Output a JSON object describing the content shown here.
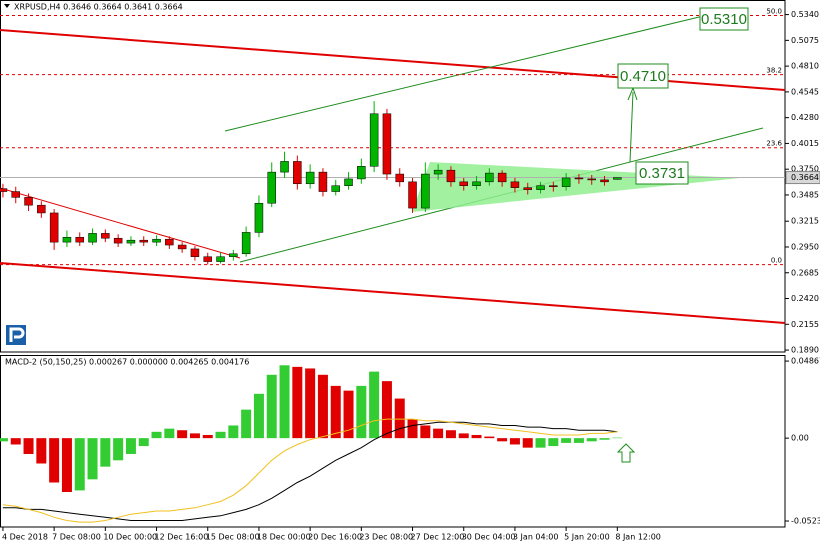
{
  "chart_data": [
    {
      "type": "candlestick",
      "title": "XRPUSD,H4  0.3646 0.3664 0.3641 0.3664",
      "open": [
        0.355,
        0.352,
        0.346,
        0.338,
        0.33,
        0.3,
        0.305,
        0.3,
        0.309,
        0.304,
        0.299,
        0.302,
        0.3,
        0.303,
        0.297,
        0.293,
        0.285,
        0.28,
        0.285,
        0.288,
        0.31,
        0.34,
        0.372,
        0.383,
        0.36,
        0.372,
        0.352,
        0.358,
        0.365,
        0.378,
        0.432,
        0.37,
        0.362,
        0.335,
        0.37,
        0.374,
        0.362,
        0.358,
        0.362,
        0.371,
        0.362,
        0.356,
        0.354,
        0.358,
        0.357,
        0.366,
        0.365,
        0.364,
        0.3646
      ],
      "high": [
        0.36,
        0.357,
        0.35,
        0.342,
        0.334,
        0.312,
        0.31,
        0.314,
        0.313,
        0.308,
        0.306,
        0.306,
        0.307,
        0.306,
        0.3,
        0.296,
        0.289,
        0.289,
        0.292,
        0.316,
        0.348,
        0.382,
        0.393,
        0.389,
        0.38,
        0.376,
        0.364,
        0.372,
        0.386,
        0.445,
        0.437,
        0.376,
        0.366,
        0.382,
        0.38,
        0.378,
        0.366,
        0.368,
        0.376,
        0.374,
        0.366,
        0.361,
        0.362,
        0.362,
        0.371,
        0.37,
        0.369,
        0.368,
        0.3664
      ],
      "low": [
        0.346,
        0.34,
        0.332,
        0.325,
        0.292,
        0.295,
        0.296,
        0.297,
        0.3,
        0.295,
        0.296,
        0.296,
        0.296,
        0.293,
        0.289,
        0.281,
        0.277,
        0.278,
        0.281,
        0.285,
        0.305,
        0.336,
        0.366,
        0.354,
        0.355,
        0.347,
        0.348,
        0.354,
        0.36,
        0.372,
        0.364,
        0.357,
        0.33,
        0.331,
        0.364,
        0.357,
        0.353,
        0.354,
        0.358,
        0.357,
        0.351,
        0.349,
        0.35,
        0.352,
        0.353,
        0.36,
        0.359,
        0.358,
        0.3641
      ],
      "close": [
        0.352,
        0.346,
        0.338,
        0.33,
        0.3,
        0.305,
        0.3,
        0.309,
        0.304,
        0.299,
        0.302,
        0.3,
        0.303,
        0.297,
        0.293,
        0.285,
        0.28,
        0.285,
        0.288,
        0.31,
        0.34,
        0.372,
        0.383,
        0.36,
        0.372,
        0.352,
        0.358,
        0.365,
        0.378,
        0.432,
        0.37,
        0.362,
        0.335,
        0.37,
        0.374,
        0.362,
        0.358,
        0.362,
        0.371,
        0.362,
        0.356,
        0.354,
        0.358,
        0.357,
        0.366,
        0.365,
        0.364,
        0.362,
        0.3664
      ],
      "up_color": "#00b400",
      "down_color": "#e00000",
      "xlim": [
        -0.23,
        61.1
      ],
      "ylim": [
        0.187,
        0.549
      ],
      "yticks": [
        {
          "value": 0.534,
          "label": "0.5340"
        },
        {
          "value": 0.5075,
          "label": "0.5075"
        },
        {
          "value": 0.481,
          "label": "0.4810"
        },
        {
          "value": 0.4545,
          "label": "0.4545"
        },
        {
          "value": 0.428,
          "label": "0.4280"
        },
        {
          "value": 0.4015,
          "label": "0.4015"
        },
        {
          "value": 0.375,
          "label": "0.3750"
        },
        {
          "value": 0.3485,
          "label": "0.3485"
        },
        {
          "value": 0.3215,
          "label": "0.3215"
        },
        {
          "value": 0.295,
          "label": "0.2950"
        },
        {
          "value": 0.2685,
          "label": "0.2685"
        },
        {
          "value": 0.242,
          "label": "0.2420"
        },
        {
          "value": 0.2155,
          "label": "0.2155"
        },
        {
          "value": 0.189,
          "label": "0.1890"
        }
      ],
      "fib_levels": [
        {
          "value": 0.533,
          "label": "50.0"
        },
        {
          "value": 0.4722,
          "label": "38.2"
        },
        {
          "value": 0.3971,
          "label": "23.6"
        },
        {
          "value": 0.2768,
          "label": "0.0"
        }
      ],
      "last_price": {
        "value": 0.3664,
        "label": "0.3664"
      },
      "annotations": [
        "0.5310",
        "0.4710",
        "0.3731"
      ]
    },
    {
      "type": "macd",
      "title": "MACD-2 (50,150,25) 0.000267 0.000000 0.004265 0.004176",
      "histogram": [
        -0.002,
        -0.004,
        -0.01,
        -0.016,
        -0.028,
        -0.034,
        -0.033,
        -0.026,
        -0.018,
        -0.014,
        -0.01,
        -0.005,
        0.004,
        0.006,
        0.005,
        0.003,
        0.002,
        0.004,
        0.008,
        0.018,
        0.028,
        0.04,
        0.046,
        0.045,
        0.044,
        0.04,
        0.033,
        0.03,
        0.033,
        0.042,
        0.036,
        0.025,
        0.012,
        0.008,
        0.006,
        0.005,
        0.003,
        0.002,
        0.001,
        -0.002,
        -0.004,
        -0.006,
        -0.006,
        -0.005,
        -0.003,
        -0.003,
        -0.002,
        -0.001,
        0.0003
      ],
      "rise_color": "#33cc33",
      "fall_color": "#e00000",
      "series": [
        {
          "color": "#000000",
          "values": [
            -0.044,
            -0.044,
            -0.045,
            -0.045,
            -0.046,
            -0.047,
            -0.048,
            -0.049,
            -0.05,
            -0.051,
            -0.052,
            -0.052,
            -0.052,
            -0.052,
            -0.052,
            -0.051,
            -0.05,
            -0.049,
            -0.047,
            -0.045,
            -0.042,
            -0.038,
            -0.033,
            -0.028,
            -0.024,
            -0.019,
            -0.014,
            -0.01,
            -0.006,
            -0.001,
            0.003,
            0.006,
            0.008,
            0.009,
            0.01,
            0.01,
            0.01,
            0.009,
            0.009,
            0.008,
            0.008,
            0.007,
            0.007,
            0.006,
            0.006,
            0.005,
            0.005,
            0.005,
            0.004
          ]
        },
        {
          "color": "#f0c020",
          "values": [
            -0.042,
            -0.043,
            -0.045,
            -0.047,
            -0.05,
            -0.052,
            -0.053,
            -0.053,
            -0.052,
            -0.05,
            -0.048,
            -0.047,
            -0.046,
            -0.046,
            -0.045,
            -0.044,
            -0.042,
            -0.04,
            -0.036,
            -0.03,
            -0.022,
            -0.014,
            -0.008,
            -0.004,
            -0.001,
            0.001,
            0.003,
            0.005,
            0.008,
            0.011,
            0.012,
            0.012,
            0.012,
            0.011,
            0.011,
            0.01,
            0.009,
            0.008,
            0.007,
            0.006,
            0.005,
            0.004,
            0.003,
            0.002,
            0.002,
            0.002,
            0.003,
            0.003,
            0.004
          ]
        }
      ],
      "xlim": [
        -0.23,
        61.1
      ],
      "ylim": [
        -0.0561,
        0.0525
      ],
      "yticks": [
        0.048671,
        {
          "value": 0,
          "label": "0.00"
        },
        -0.052324
      ],
      "xticks": [
        {
          "value": 0,
          "label": "4 Dec 2018"
        },
        {
          "value": 4,
          "label": "7 Dec 08:00"
        },
        {
          "value": 8,
          "label": "10 Dec 00:00"
        },
        {
          "value": 12,
          "label": "12 Dec 16:00"
        },
        {
          "value": 16,
          "label": "15 Dec 08:00"
        },
        {
          "value": 20,
          "label": "18 Dec 00:00"
        },
        {
          "value": 24,
          "label": "20 Dec 16:00"
        },
        {
          "value": 28,
          "label": "23 Dec 08:00"
        },
        {
          "value": 32,
          "label": "27 Dec 12:00"
        },
        {
          "value": 36,
          "label": "30 Dec 04:00"
        },
        {
          "value": 40,
          "label": "3 Jan 04:00"
        },
        {
          "value": 44,
          "label": "5 Jan 20:00"
        },
        {
          "value": 48,
          "label": "8 Jan 12:00"
        }
      ]
    }
  ]
}
